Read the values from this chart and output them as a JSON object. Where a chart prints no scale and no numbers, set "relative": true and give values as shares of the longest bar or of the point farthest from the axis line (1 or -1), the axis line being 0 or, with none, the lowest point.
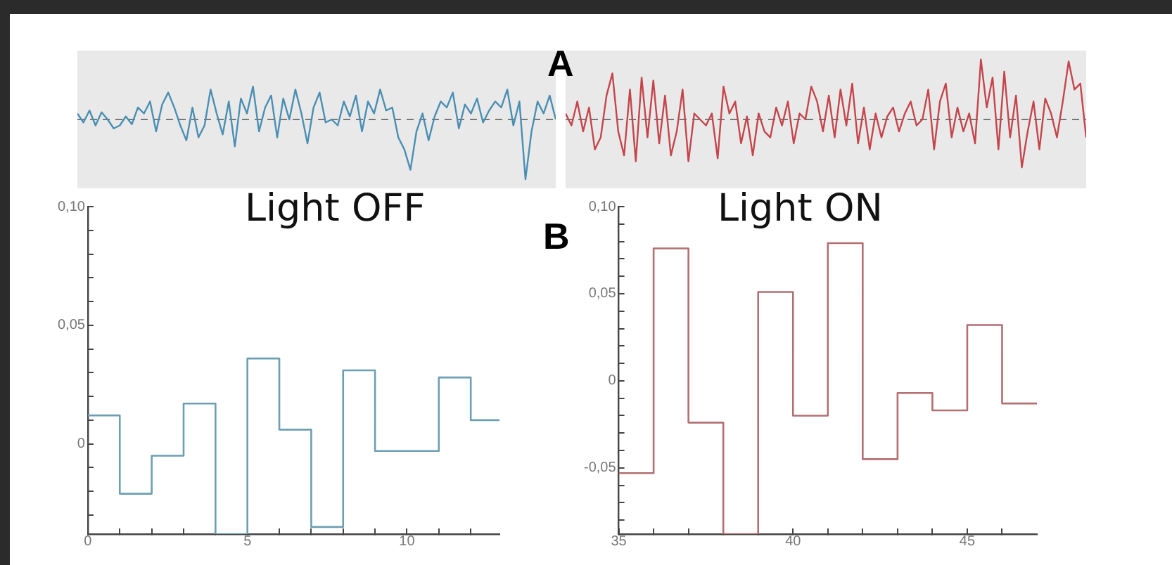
{
  "chart_data": [
    {
      "type": "line",
      "relative": true,
      "categories": [
        null,
        null,
        null,
        null,
        null,
        null,
        null,
        null,
        null,
        null,
        null,
        null,
        null,
        null,
        null,
        null,
        null,
        null,
        null,
        null,
        null,
        null,
        null,
        null,
        null,
        null,
        null,
        null,
        null,
        null,
        null,
        null,
        null,
        null,
        null,
        null,
        null,
        null,
        null,
        null,
        null,
        null,
        null,
        null,
        null,
        null,
        null,
        null,
        null,
        null,
        null,
        null,
        null,
        null,
        null,
        null,
        null,
        null,
        null,
        null,
        null,
        null,
        null,
        null,
        null,
        null,
        null,
        null,
        null,
        null,
        null,
        null,
        null,
        null,
        null,
        null,
        null,
        null,
        null,
        null
      ],
      "series": [
        {
          "color": "#4a8fb3",
          "values": [
            0.1,
            -0.05,
            0.15,
            -0.1,
            0.12,
            0.0,
            -0.15,
            -0.1,
            0.05,
            -0.08,
            0.2,
            0.1,
            0.3,
            -0.2,
            0.25,
            0.45,
            0.2,
            -0.1,
            -0.35,
            0.2,
            -0.3,
            -0.1,
            0.5,
            0.1,
            -0.25,
            0.3,
            -0.45,
            0.35,
            0.1,
            0.55,
            -0.2,
            0.2,
            0.4,
            -0.3,
            0.35,
            0.0,
            0.5,
            0.1,
            -0.4,
            0.2,
            0.45,
            -0.05,
            0.0,
            -0.1,
            0.3,
            0.05,
            0.4,
            -0.2,
            0.3,
            0.1,
            0.5,
            0.15,
            0.2,
            -0.3,
            -0.5,
            -0.84,
            -0.2,
            0.1,
            -0.35,
            0.05,
            0.3,
            0.2,
            0.45,
            -0.15,
            0.25,
            0.1,
            0.35,
            -0.05,
            0.15,
            0.3,
            0.2,
            0.5,
            -0.1,
            0.3,
            -1,
            -0.2,
            0.3,
            0.1,
            0.4,
            0.0
          ]
        }
      ],
      "ref_lines": [
        {
          "axis": "y",
          "value": 0,
          "color": "#777777",
          "line_style": "dashed"
        }
      ],
      "marker": "none"
    },
    {
      "type": "line",
      "relative": true,
      "categories": [
        null,
        null,
        null,
        null,
        null,
        null,
        null,
        null,
        null,
        null,
        null,
        null,
        null,
        null,
        null,
        null,
        null,
        null,
        null,
        null,
        null,
        null,
        null,
        null,
        null,
        null,
        null,
        null,
        null,
        null,
        null,
        null,
        null,
        null,
        null,
        null,
        null,
        null,
        null,
        null,
        null,
        null,
        null,
        null,
        null,
        null,
        null,
        null,
        null,
        null,
        null,
        null,
        null,
        null,
        null,
        null,
        null,
        null,
        null,
        null,
        null,
        null,
        null,
        null,
        null,
        null,
        null,
        null,
        null,
        null,
        null,
        null,
        null,
        null,
        null,
        null,
        null,
        null,
        null,
        null,
        null,
        null,
        null,
        null,
        null,
        null,
        null,
        null,
        null,
        null
      ],
      "series": [
        {
          "color": "#c5454b",
          "values": [
            0.1,
            -0.1,
            0.3,
            -0.2,
            0.2,
            -0.5,
            -0.3,
            0.4,
            0.77,
            -0.2,
            -0.6,
            0.5,
            -0.7,
            0.7,
            -0.3,
            0.65,
            -0.4,
            0.4,
            -0.6,
            -0.2,
            0.5,
            -0.7,
            0.1,
            0.0,
            -0.1,
            0.1,
            -0.65,
            0.55,
            0.1,
            0.3,
            -0.4,
            0.05,
            -0.6,
            0.1,
            -0.2,
            -0.3,
            0.2,
            -0.1,
            0.3,
            -0.4,
            0.1,
            0.0,
            0.55,
            0.3,
            -0.2,
            0.4,
            -0.3,
            0.5,
            -0.1,
            0.6,
            -0.4,
            0.2,
            -0.5,
            0.1,
            -0.3,
            0.05,
            0.2,
            -0.2,
            0.1,
            0.3,
            -0.1,
            0.0,
            0.5,
            -0.5,
            0.3,
            0.6,
            -0.3,
            0.2,
            -0.2,
            0.1,
            -0.4,
            1.0,
            0.2,
            0.7,
            -0.5,
            0.8,
            -0.3,
            0.4,
            -0.8,
            -0.2,
            0.3,
            -0.5,
            0.35,
            0.1,
            -0.3,
            0.3,
            0.97,
            0.5,
            0.6,
            -0.3
          ]
        }
      ],
      "ref_lines": [
        {
          "axis": "y",
          "value": 0,
          "color": "#777777",
          "line_style": "dashed"
        }
      ],
      "annotations": [
        "A"
      ],
      "marker": "none"
    },
    {
      "type": "step",
      "title": "Light OFF",
      "x": [
        0,
        1,
        2,
        3,
        4,
        5,
        6,
        7,
        8,
        9,
        10,
        11,
        12,
        12.9
      ],
      "series": [
        {
          "color": "#6c9fb2",
          "values": [
            0.012,
            -0.021,
            -0.005,
            0.017,
            -0.038,
            0.036,
            0.006,
            -0.035,
            0.031,
            -0.003,
            -0.003,
            0.028,
            0.01,
            0.01
          ]
        }
      ],
      "xlim": [
        0,
        12.9
      ],
      "ylim": [
        -0.038,
        0.1
      ],
      "xticks": [
        0,
        {
          "value": 1,
          "label": null
        },
        {
          "value": 2,
          "label": null
        },
        {
          "value": 3,
          "label": null
        },
        {
          "value": 4,
          "label": null
        },
        5,
        {
          "value": 6,
          "label": null
        },
        {
          "value": 7,
          "label": null
        },
        {
          "value": 8,
          "label": null
        },
        {
          "value": 9,
          "label": null
        },
        10,
        {
          "value": 11,
          "label": null
        },
        {
          "value": 12,
          "label": null
        }
      ],
      "yticks": [
        {
          "value": -0.03,
          "label": null
        },
        {
          "value": -0.02,
          "label": null
        },
        {
          "value": -0.01,
          "label": null
        },
        {
          "value": 0,
          "label": "0"
        },
        {
          "value": 0.01,
          "label": null
        },
        {
          "value": 0.02,
          "label": null
        },
        {
          "value": 0.03,
          "label": null
        },
        {
          "value": 0.04,
          "label": null
        },
        {
          "value": 0.05,
          "label": "0,05"
        },
        {
          "value": 0.06,
          "label": null
        },
        {
          "value": 0.07,
          "label": null
        },
        {
          "value": 0.08,
          "label": null
        },
        {
          "value": 0.09,
          "label": null
        },
        {
          "value": 0.1,
          "label": "0,10"
        }
      ],
      "marker": "none",
      "grid": false
    },
    {
      "type": "step",
      "title": "Light ON",
      "x": [
        35,
        36,
        37,
        38,
        39,
        40,
        41,
        42,
        43,
        44,
        45,
        46,
        47
      ],
      "series": [
        {
          "color": "#b36f72",
          "values": [
            -0.053,
            0.076,
            -0.024,
            -0.088,
            0.051,
            -0.02,
            0.079,
            -0.045,
            -0.007,
            -0.017,
            0.032,
            -0.013,
            -0.013
          ]
        }
      ],
      "xlim": [
        35,
        47
      ],
      "ylim": [
        -0.088,
        0.1
      ],
      "xticks": [
        35,
        {
          "value": 36,
          "label": null
        },
        {
          "value": 37,
          "label": null
        },
        {
          "value": 38,
          "label": null
        },
        {
          "value": 39,
          "label": null
        },
        40,
        {
          "value": 41,
          "label": null
        },
        {
          "value": 42,
          "label": null
        },
        {
          "value": 43,
          "label": null
        },
        {
          "value": 44,
          "label": null
        },
        45,
        {
          "value": 46,
          "label": null
        }
      ],
      "yticks": [
        {
          "value": -0.08,
          "label": null
        },
        {
          "value": -0.07,
          "label": null
        },
        {
          "value": -0.06,
          "label": null
        },
        {
          "value": -0.05,
          "label": "-0,05"
        },
        {
          "value": -0.04,
          "label": null
        },
        {
          "value": -0.03,
          "label": null
        },
        {
          "value": -0.02,
          "label": null
        },
        {
          "value": -0.01,
          "label": null
        },
        {
          "value": 0,
          "label": "0"
        },
        {
          "value": 0.01,
          "label": null
        },
        {
          "value": 0.02,
          "label": null
        },
        {
          "value": 0.03,
          "label": null
        },
        {
          "value": 0.04,
          "label": null
        },
        {
          "value": 0.05,
          "label": "0,05"
        },
        {
          "value": 0.06,
          "label": null
        },
        {
          "value": 0.07,
          "label": null
        },
        {
          "value": 0.08,
          "label": null
        },
        {
          "value": 0.09,
          "label": null
        },
        {
          "value": 0.1,
          "label": "0,10"
        }
      ],
      "annotations": [
        "B"
      ],
      "marker": "none",
      "grid": false
    }
  ]
}
